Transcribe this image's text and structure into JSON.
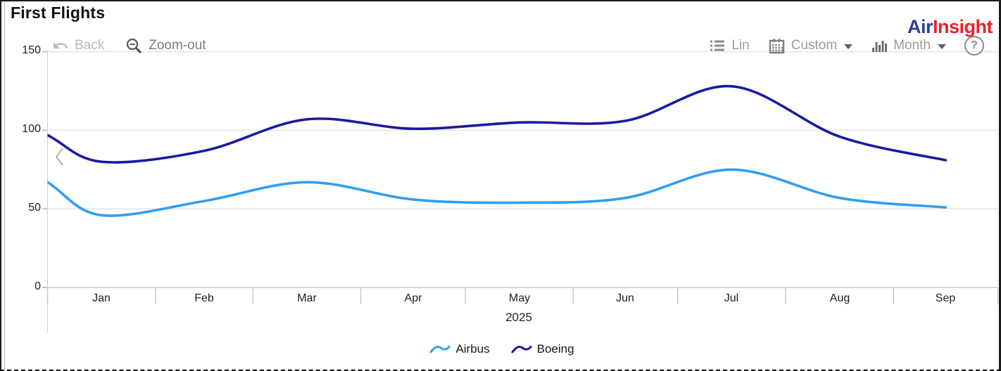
{
  "window": {
    "title": "First Flights"
  },
  "logo": {
    "part1": "Air",
    "part2": "Insight",
    "part1_color": "#2B3F9B",
    "part2_color": "#EE2226"
  },
  "toolbar": {
    "back_label": "Back",
    "zoom_out_label": "Zoom-out",
    "lin_label": "Lin",
    "custom_label": "Custom",
    "month_label": "Month",
    "help_label": "?"
  },
  "chart_data": {
    "type": "line",
    "title": "First Flights",
    "x_axis": {
      "categories": [
        "Jan",
        "Feb",
        "Mar",
        "Apr",
        "May",
        "Jun",
        "Jul",
        "Aug",
        "Sep"
      ],
      "year_label": "2025"
    },
    "y_axis": {
      "tick_labels": [
        "0",
        "50",
        "100",
        "150"
      ],
      "ticks": [
        0,
        50,
        100,
        150
      ],
      "range": [
        0,
        150
      ]
    },
    "grid": true,
    "legend_position": "bottom",
    "curve": "smooth",
    "series": [
      {
        "name": "Airbus",
        "color": "#2F9EF4",
        "values": [
          46,
          55,
          67,
          56,
          54,
          57,
          75,
          57,
          51
        ],
        "left_edge_value": 67
      },
      {
        "name": "Boeing",
        "color": "#1B1AA2",
        "values": [
          80,
          87,
          107,
          101,
          105,
          106,
          128,
          96,
          81
        ],
        "left_edge_value": 97
      }
    ]
  }
}
